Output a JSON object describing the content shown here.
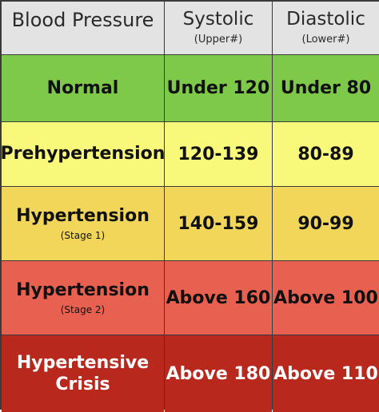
{
  "header": {
    "col1": "Blood Pressure",
    "col2": "Systolic",
    "col2_sub": "(Upper#)",
    "col3": "Diastolic",
    "col3_sub": "(Lower#)"
  },
  "rows": [
    {
      "category": "Normal",
      "category_sub": "",
      "systolic": "Under 120",
      "diastolic": "Under 80",
      "color": "#7ec84a"
    },
    {
      "category": "Prehypertension",
      "category_sub": "",
      "systolic": "120-139",
      "diastolic": "80-89",
      "color": "#f8f87a"
    },
    {
      "category": "Hypertension",
      "category_sub": "(Stage 1)",
      "systolic": "140-159",
      "diastolic": "90-99",
      "color": "#f2d65a"
    },
    {
      "category": "Hypertension",
      "category_sub": "(Stage 2)",
      "systolic": "Above 160",
      "diastolic": "Above 100",
      "color": "#e8604f"
    },
    {
      "category": "Hypertensive Crisis",
      "category_sub": "",
      "systolic": "Above 180",
      "diastolic": "Above 110",
      "color": "#b8281c"
    }
  ]
}
